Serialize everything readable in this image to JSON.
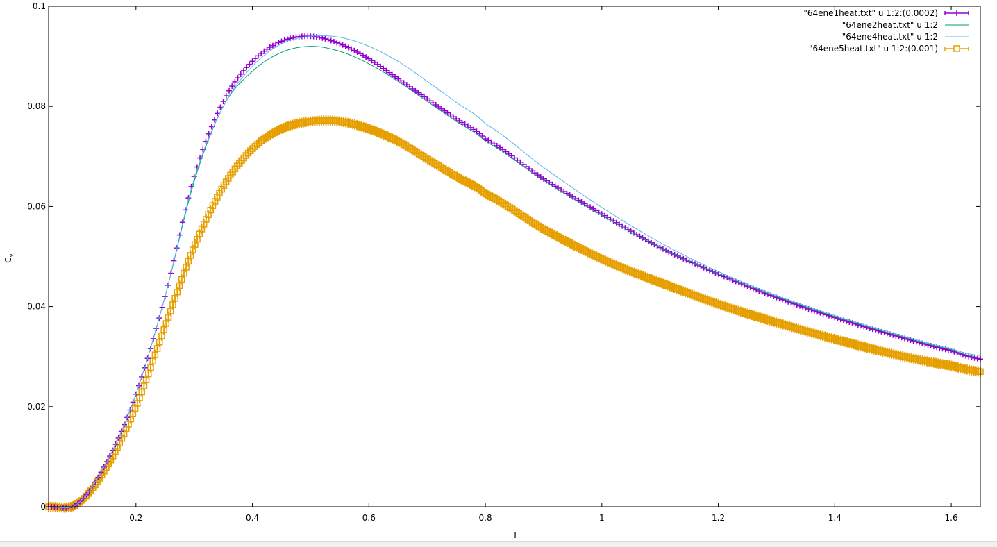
{
  "chart_data": {
    "type": "line",
    "title": "",
    "xlabel": "T",
    "ylabel": "C",
    "ylabel_subscript": "v",
    "xlim": [
      0.05,
      1.65
    ],
    "ylim": [
      0,
      0.1
    ],
    "x_ticks": [
      0.2,
      0.4,
      0.6,
      0.8,
      1,
      1.2,
      1.4,
      1.6
    ],
    "x_tick_labels": [
      "0.2",
      "0.4",
      "0.6",
      "0.8",
      "1",
      "1.2",
      "1.4",
      "1.6"
    ],
    "y_ticks": [
      0,
      0.02,
      0.04,
      0.06,
      0.08,
      0.1
    ],
    "y_tick_labels": [
      "0",
      "0.02",
      "0.04",
      "0.06",
      "0.08",
      "0.1"
    ],
    "grid": false,
    "legend_position": "top-right",
    "series": [
      {
        "name": "\"64ene1heat.txt\" u 1:2:(0.0002)",
        "color": "#9400d3",
        "style": "errorbars-plus",
        "x": [
          0.05,
          0.1,
          0.15,
          0.2,
          0.25,
          0.3,
          0.35,
          0.4,
          0.45,
          0.5,
          0.55,
          0.6,
          0.65,
          0.7,
          0.75,
          0.8,
          0.9,
          1.0,
          1.1,
          1.2,
          1.3,
          1.4,
          1.5,
          1.6,
          1.65
        ],
        "y": [
          0.0,
          0.0006,
          0.009,
          0.0225,
          0.042,
          0.066,
          0.081,
          0.089,
          0.093,
          0.094,
          0.0925,
          0.0895,
          0.0855,
          0.0815,
          0.0775,
          0.0735,
          0.0655,
          0.0585,
          0.0518,
          0.0465,
          0.0418,
          0.0378,
          0.0343,
          0.0312,
          0.0295
        ]
      },
      {
        "name": "\"64ene2heat.txt\" u 1:2",
        "color": "#009e73",
        "style": "line",
        "x": [
          0.05,
          0.1,
          0.15,
          0.2,
          0.25,
          0.3,
          0.35,
          0.4,
          0.45,
          0.5,
          0.55,
          0.6,
          0.65,
          0.7,
          0.75,
          0.8,
          0.9,
          1.0,
          1.1,
          1.2,
          1.3,
          1.4,
          1.5,
          1.6,
          1.65
        ],
        "y": [
          0.0,
          0.0006,
          0.009,
          0.0225,
          0.042,
          0.065,
          0.08,
          0.087,
          0.0908,
          0.092,
          0.091,
          0.0885,
          0.085,
          0.081,
          0.077,
          0.073,
          0.0652,
          0.0582,
          0.0518,
          0.0466,
          0.042,
          0.038,
          0.0345,
          0.0314,
          0.0298
        ]
      },
      {
        "name": "\"64ene4heat.txt\" u 1:2",
        "color": "#56b4e9",
        "style": "line",
        "x": [
          0.05,
          0.1,
          0.15,
          0.2,
          0.25,
          0.3,
          0.35,
          0.4,
          0.45,
          0.5,
          0.55,
          0.6,
          0.65,
          0.7,
          0.75,
          0.8,
          0.9,
          1.0,
          1.1,
          1.2,
          1.3,
          1.4,
          1.5,
          1.6,
          1.65
        ],
        "y": [
          0.0,
          0.0006,
          0.009,
          0.0225,
          0.042,
          0.0655,
          0.08,
          0.088,
          0.0925,
          0.094,
          0.0938,
          0.092,
          0.089,
          0.085,
          0.0808,
          0.0765,
          0.0678,
          0.0598,
          0.0528,
          0.047,
          0.0422,
          0.0382,
          0.0347,
          0.0316,
          0.0302
        ]
      },
      {
        "name": "\"64ene5heat.txt\" u 1:2:(0.001)",
        "color": "#e69f00",
        "style": "errorbars-square",
        "x": [
          0.05,
          0.1,
          0.15,
          0.2,
          0.25,
          0.3,
          0.35,
          0.4,
          0.45,
          0.5,
          0.55,
          0.6,
          0.65,
          0.7,
          0.75,
          0.8,
          0.9,
          1.0,
          1.1,
          1.2,
          1.3,
          1.4,
          1.5,
          1.6,
          1.65
        ],
        "y": [
          0.0,
          0.0006,
          0.008,
          0.02,
          0.036,
          0.052,
          0.064,
          0.0715,
          0.0755,
          0.077,
          0.077,
          0.0755,
          0.073,
          0.0695,
          0.066,
          0.0625,
          0.0555,
          0.0495,
          0.0448,
          0.0405,
          0.0368,
          0.0335,
          0.0305,
          0.0282,
          0.027
        ]
      }
    ]
  }
}
